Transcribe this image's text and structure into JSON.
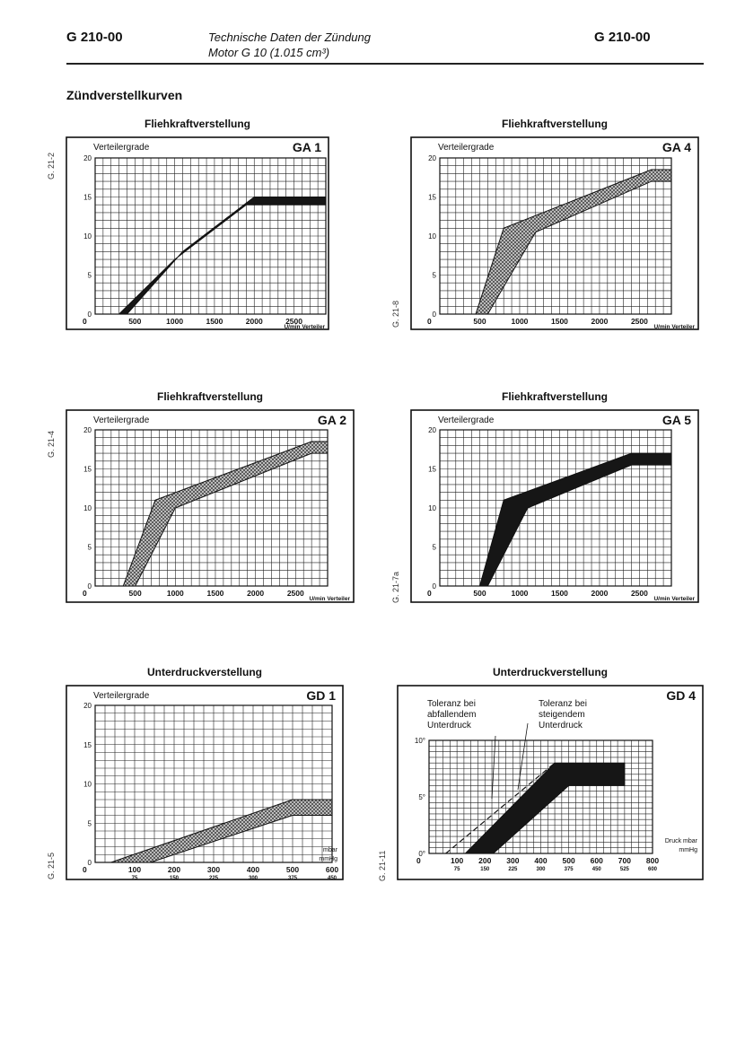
{
  "header": {
    "code_left": "G 210-00",
    "title_line1": "Technische Daten der Zündung",
    "title_line2": "Motor G 10 (1.015 cm³)",
    "code_right": "G 210-00"
  },
  "section_title": "Zündverstellkurven",
  "charts": [
    {
      "title": "Fliehkraftverstellung",
      "id": "GA 1",
      "side_code": "G. 21-2",
      "ylabel": "Verteilergrade",
      "yticks": [
        "0",
        "5",
        "10",
        "15",
        "20"
      ],
      "xticks": [
        "500",
        "1000",
        "1500",
        "2000",
        "2500"
      ],
      "xunit": "U/min Verteiler"
    },
    {
      "title": "Fliehkraftverstellung",
      "id": "GA 4",
      "side_code": "G. 21-8",
      "ylabel": "Verteilergrade",
      "yticks": [
        "0",
        "5",
        "10",
        "15",
        "20"
      ],
      "xticks": [
        "500",
        "1000",
        "1500",
        "2000",
        "2500"
      ],
      "xunit": "U/min Verteiler"
    },
    {
      "title": "Fliehkraftverstellung",
      "id": "GA 2",
      "side_code": "G. 21-4",
      "ylabel": "Verteilergrade",
      "yticks": [
        "0",
        "5",
        "10",
        "15",
        "20"
      ],
      "xticks": [
        "500",
        "1000",
        "1500",
        "2000",
        "2500"
      ],
      "xunit": "U/min Verteiler"
    },
    {
      "title": "Fliehkraftverstellung",
      "id": "GA 5",
      "side_code": "G. 21-7a",
      "ylabel": "Verteilergrade",
      "yticks": [
        "0",
        "5",
        "10",
        "15",
        "20"
      ],
      "xticks": [
        "500",
        "1000",
        "1500",
        "2000",
        "2500"
      ],
      "xunit": "U/min Verteiler"
    },
    {
      "title": "Unterdruckverstellung",
      "id": "GD 1",
      "side_code": "G. 21-5",
      "ylabel": "Verteilergrade",
      "yticks": [
        "0",
        "5",
        "10",
        "15",
        "20"
      ],
      "xticks": [
        "100",
        "200",
        "300",
        "400",
        "500",
        "600"
      ],
      "xticks2": [
        "75",
        "150",
        "225",
        "300",
        "375",
        "450"
      ],
      "xunit": "mbar",
      "xunit2": "mmHg"
    },
    {
      "title": "Unterdruckverstellung",
      "id": "GD 4",
      "side_code": "G. 21-11",
      "yticks": [
        "0°",
        "5°",
        "10°"
      ],
      "xticks": [
        "100",
        "200",
        "300",
        "400",
        "500",
        "600",
        "700",
        "800"
      ],
      "xticks2": [
        "75",
        "150",
        "225",
        "300",
        "375",
        "450",
        "525",
        "600"
      ],
      "xunit": "Druck mbar",
      "xunit2": "mmHg",
      "annot1": [
        "Toleranz bei",
        "abfallendem",
        "Unterdruck"
      ],
      "annot2": [
        "Toleranz bei",
        "steigendem",
        "Unterdruck"
      ]
    }
  ],
  "chart_data": [
    {
      "type": "area",
      "id": "GA 1",
      "x_unit": "U/min Verteiler",
      "y_unit": "Verteilergrade",
      "xlim": [
        0,
        2900
      ],
      "ylim": [
        0,
        20
      ],
      "series": [
        {
          "x": [
            400,
            1100,
            2000,
            2900
          ],
          "y": [
            0,
            8,
            15,
            15
          ]
        },
        {
          "x": [
            300,
            1000,
            1900,
            2900
          ],
          "y": [
            0,
            7,
            14,
            14
          ]
        }
      ],
      "fill": "solid"
    },
    {
      "type": "area",
      "id": "GA 4",
      "x_unit": "U/min Verteiler",
      "y_unit": "Verteilergrade",
      "xlim": [
        0,
        2900
      ],
      "ylim": [
        0,
        20
      ],
      "series": [
        {
          "x": [
            450,
            800,
            2650,
            2900
          ],
          "y": [
            0,
            11,
            18.5,
            18.5
          ]
        },
        {
          "x": [
            600,
            1200,
            2650,
            2900
          ],
          "y": [
            0,
            10.5,
            17,
            17
          ]
        }
      ],
      "fill": "hatched"
    },
    {
      "type": "area",
      "id": "GA 2",
      "x_unit": "U/min Verteiler",
      "y_unit": "Verteilergrade",
      "xlim": [
        0,
        2900
      ],
      "ylim": [
        0,
        20
      ],
      "series": [
        {
          "x": [
            350,
            750,
            2700,
            2900
          ],
          "y": [
            0,
            11,
            18.5,
            18.5
          ]
        },
        {
          "x": [
            500,
            1000,
            2700,
            2900
          ],
          "y": [
            0,
            10,
            17,
            17
          ]
        }
      ],
      "fill": "hatched"
    },
    {
      "type": "area",
      "id": "GA 5",
      "x_unit": "U/min Verteiler",
      "y_unit": "Verteilergrade",
      "xlim": [
        0,
        2900
      ],
      "ylim": [
        0,
        20
      ],
      "series": [
        {
          "x": [
            500,
            800,
            2400,
            2900
          ],
          "y": [
            0,
            11,
            17,
            17
          ]
        },
        {
          "x": [
            600,
            1100,
            2400,
            2900
          ],
          "y": [
            0,
            10,
            15.5,
            15.5
          ]
        }
      ],
      "fill": "solid"
    },
    {
      "type": "area",
      "id": "GD 1",
      "x_unit": "mbar",
      "y_unit": "Verteilergrade",
      "xlim": [
        0,
        600
      ],
      "ylim": [
        0,
        20
      ],
      "series": [
        {
          "x": [
            40,
            500,
            600
          ],
          "y": [
            0,
            8,
            8
          ]
        },
        {
          "x": [
            140,
            500,
            600
          ],
          "y": [
            0,
            6,
            6
          ]
        }
      ],
      "fill": "hatched"
    },
    {
      "type": "area",
      "id": "GD 4",
      "x_unit": "mbar",
      "y_unit": "Grad",
      "xlim": [
        0,
        800
      ],
      "ylim": [
        0,
        10
      ],
      "series": [
        {
          "x": [
            130,
            450,
            700
          ],
          "y": [
            0,
            8,
            8
          ]
        },
        {
          "x": [
            230,
            500,
            700
          ],
          "y": [
            0,
            6,
            6
          ]
        },
        {
          "x": [
            60,
            450
          ],
          "y": [
            0,
            8
          ],
          "style": "dashed"
        }
      ],
      "fill": "solid"
    }
  ]
}
